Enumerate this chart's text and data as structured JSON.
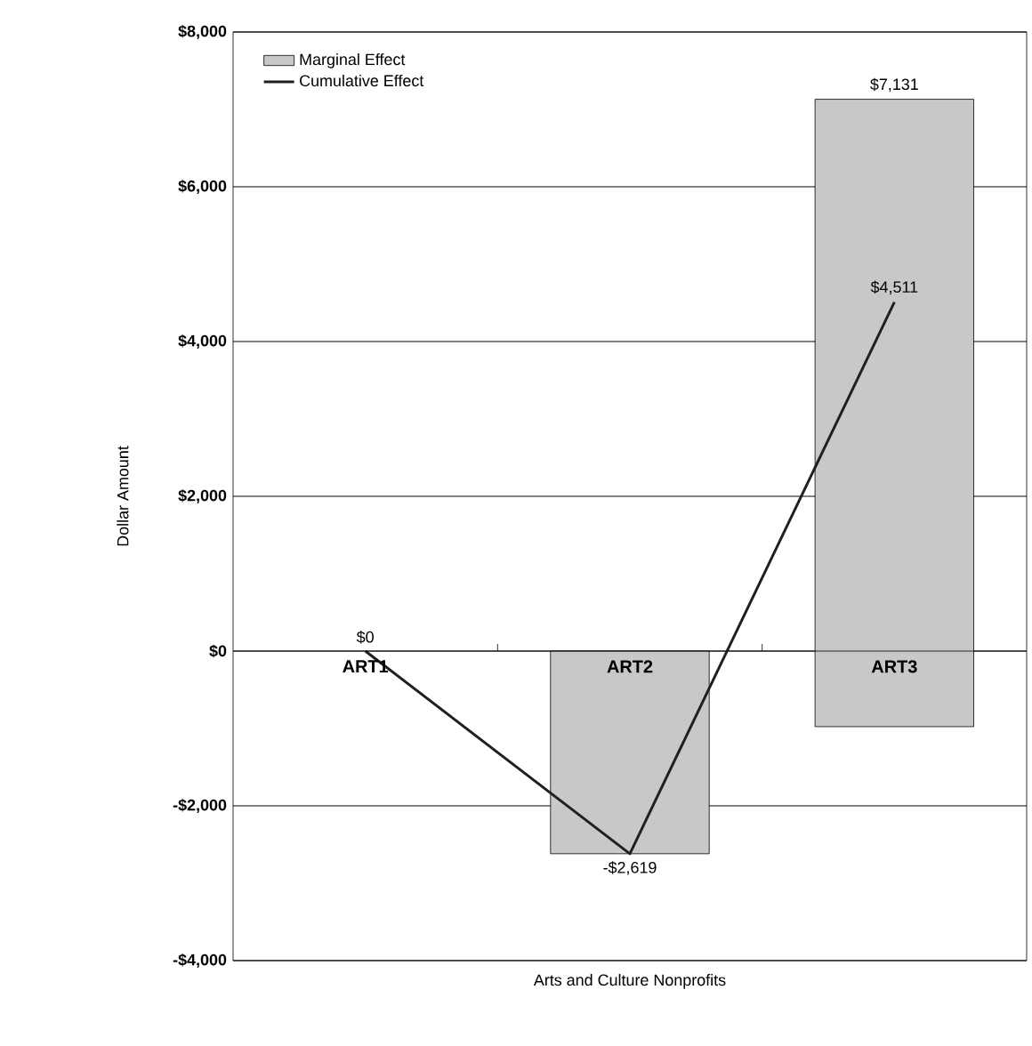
{
  "chart_data": {
    "type": "bar",
    "xlabel": "Arts and Culture Nonprofits",
    "ylabel": "Dollar Amount",
    "categories": [
      "ART1",
      "ART2",
      "ART3"
    ],
    "series": [
      {
        "name": "Marginal Effect",
        "color": "#c8c8c8",
        "values": [
          null,
          -2619,
          8108
        ],
        "base": [
          null,
          0,
          -977
        ]
      },
      {
        "name": "Cumulative Effect",
        "type": "line",
        "color": "#231f20",
        "values": [
          0,
          -2619,
          4511
        ]
      }
    ],
    "annotations": [
      {
        "text": "$0",
        "x": "ART1",
        "y": 0
      },
      {
        "text": "-$2,619",
        "x": "ART2",
        "y": -2619
      },
      {
        "text": "$7,131",
        "x": "ART3",
        "y": 7131
      },
      {
        "text": "$4,511",
        "x": "ART3",
        "y": 4511
      }
    ],
    "ylim": [
      -4000,
      8000
    ],
    "yticks": [
      {
        "value": -4000,
        "label": "-$4,000"
      },
      {
        "value": -2000,
        "label": "-$2,000"
      },
      {
        "value": 0,
        "label": "$0"
      },
      {
        "value": 2000,
        "label": "$2,000"
      },
      {
        "value": 4000,
        "label": "$4,000"
      },
      {
        "value": 6000,
        "label": "$6,000"
      },
      {
        "value": 8000,
        "label": "$8,000"
      }
    ],
    "grid": "y",
    "legend": "top left",
    "marker": "none",
    "line_style": "solid"
  }
}
